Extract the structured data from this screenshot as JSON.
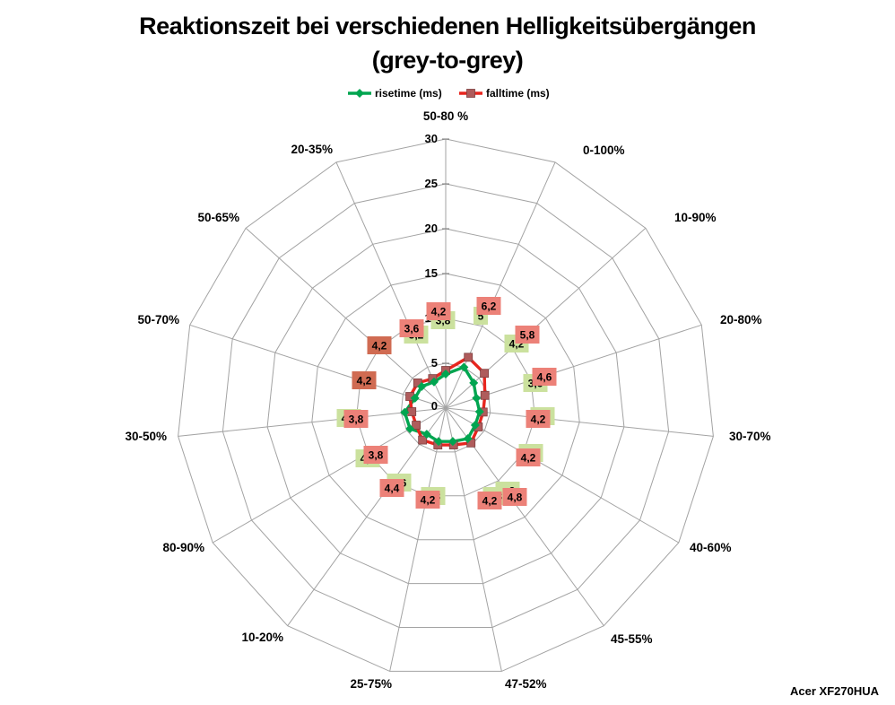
{
  "title": {
    "line1": "Reaktionszeit bei verschiedenen Helligkeitsübergängen",
    "line2": "(grey-to-grey)"
  },
  "watermark": "Acer XF270HUA",
  "legend": [
    {
      "label": "risetime (ms)",
      "color": "#00A550",
      "marker": "diamond"
    },
    {
      "label": "falltime (ms)",
      "color": "#E8251E",
      "marker": "square",
      "marker_color": "#AF5C5C"
    }
  ],
  "chart_data": {
    "type": "radar",
    "title": "Reaktionszeit bei verschiedenen Helligkeitsübergängen (grey-to-grey)",
    "categories": [
      "50-80 %",
      "0-100%",
      "10-90%",
      "20-80%",
      "30-70%",
      "40-60%",
      "45-55%",
      "47-52%",
      "25-75%",
      "10-20%",
      "80-90%",
      "30-50%",
      "50-70%",
      "50-65%",
      "20-35%"
    ],
    "radial_ticks": [
      "0",
      "5",
      "10",
      "15",
      "20",
      "25",
      "30"
    ],
    "rmax": 30,
    "grid": true,
    "legend_position": "top",
    "series": [
      {
        "name": "risetime (ms)",
        "line_color": "#00A550",
        "marker": "diamond",
        "marker_color": "#00A550",
        "label_box_color": "#CBE19E",
        "values": [
          3.8,
          5,
          4.2,
          3.6,
          3.8,
          3.8,
          4.2,
          3.8,
          3.8,
          3.6,
          4.6,
          4.6,
          3.6,
          3.6,
          3.2
        ],
        "labels": [
          "3,8",
          "5",
          "4,2",
          "3,6",
          "3,8",
          "3,8",
          "4,2",
          "3,8",
          "3,8",
          "3,6",
          "4,6",
          "4,6",
          null,
          null,
          "3,2"
        ]
      },
      {
        "name": "falltime (ms)",
        "line_color": "#E8251E",
        "marker": "square",
        "marker_color": "#AF5C5C",
        "label_box_color": "#EC8178",
        "label_box_color_dark": "#D06B52",
        "values": [
          4.2,
          6.2,
          5.8,
          4.6,
          4.2,
          4.2,
          4.8,
          4.2,
          4.2,
          4.4,
          3.8,
          3.8,
          4.2,
          4.2,
          3.6
        ],
        "labels": [
          "4,2",
          "6,2",
          "5,8",
          "4,6",
          "4,2",
          "4,2",
          "4,8",
          "4,2",
          "4,2",
          "4,4",
          "3,8",
          "3,8",
          "4,2",
          "4,2",
          "3,6"
        ]
      }
    ],
    "colors": {
      "grid": "#A3A3A3",
      "text": "#000000",
      "background": "#FFFFFF"
    }
  }
}
